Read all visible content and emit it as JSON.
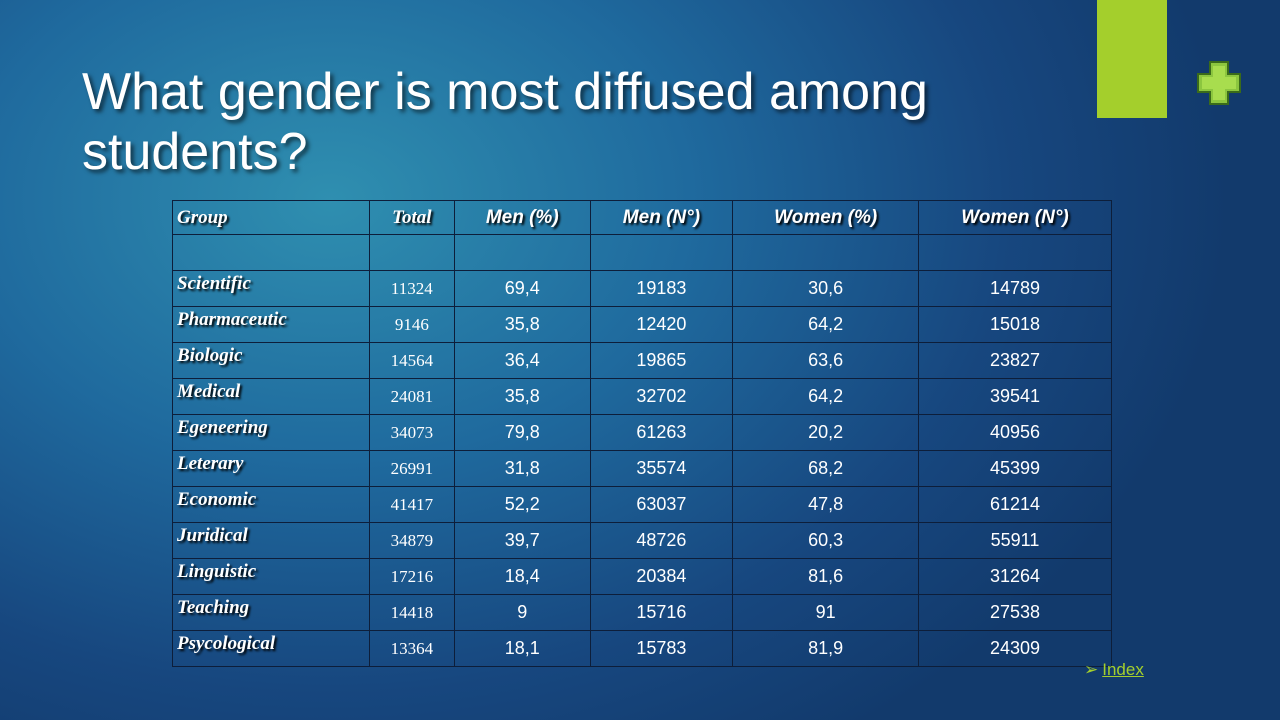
{
  "header": {
    "title": "What gender is most diffused among students?"
  },
  "table": {
    "columns": [
      "Group",
      "Total",
      "Men (%)",
      "Men (N°)",
      "Women (%)",
      "Women (N°)"
    ],
    "rows": [
      [
        "Scientific",
        "11324",
        "69,4",
        "19183",
        "30,6",
        "14789"
      ],
      [
        "Pharmaceutic",
        "9146",
        "35,8",
        "12420",
        "64,2",
        "15018"
      ],
      [
        "Biologic",
        "14564",
        "36,4",
        "19865",
        "63,6",
        "23827"
      ],
      [
        "Medical",
        "24081",
        "35,8",
        "32702",
        "64,2",
        "39541"
      ],
      [
        "Egeneering",
        "34073",
        "79,8",
        "61263",
        "20,2",
        "40956"
      ],
      [
        "Leterary",
        "26991",
        "31,8",
        "35574",
        "68,2",
        "45399"
      ],
      [
        "Economic",
        "41417",
        "52,2",
        "63037",
        "47,8",
        "61214"
      ],
      [
        "Juridical",
        "34879",
        "39,7",
        "48726",
        "60,3",
        "55911"
      ],
      [
        "Linguistic",
        "17216",
        "18,4",
        "20384",
        "81,6",
        "31264"
      ],
      [
        "Teaching",
        "14418",
        "9",
        "15716",
        "91",
        "27538"
      ],
      [
        "Psycological",
        "13364",
        "18,1",
        "15783",
        "81,9",
        "24309"
      ]
    ]
  },
  "footer": {
    "link": "Index"
  }
}
